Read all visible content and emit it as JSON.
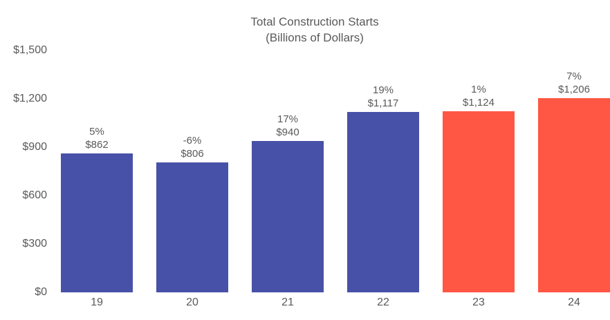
{
  "chart_data": {
    "type": "bar",
    "title": "Total Construction Starts",
    "subtitle": "(Billions of Dollars)",
    "categories": [
      "19",
      "20",
      "21",
      "22",
      "23",
      "24"
    ],
    "values": [
      862,
      806,
      940,
      1117,
      1124,
      1206
    ],
    "value_labels": [
      "$862",
      "$806",
      "$940",
      "$1,117",
      "$1,124",
      "$1,206"
    ],
    "pct_labels": [
      "5%",
      "-6%",
      "17%",
      "19%",
      "1%",
      "7%"
    ],
    "bar_colors": [
      "#4751a7",
      "#4751a7",
      "#4751a7",
      "#4751a7",
      "#ff5743",
      "#ff5743"
    ],
    "colors": {
      "historical_bar": "#4751a7",
      "forecast_bar": "#ff5743",
      "text": "#595959",
      "background": "#ffffff"
    },
    "xlabel": "",
    "ylabel": "",
    "ylim": [
      0,
      1500
    ],
    "yticks": [
      0,
      300,
      600,
      900,
      1200,
      1500
    ],
    "ytick_labels": [
      "$0",
      "$300",
      "$600",
      "$900",
      "$1,200",
      "$1,500"
    ],
    "grid": false,
    "legend": null,
    "axis_lines": false
  }
}
